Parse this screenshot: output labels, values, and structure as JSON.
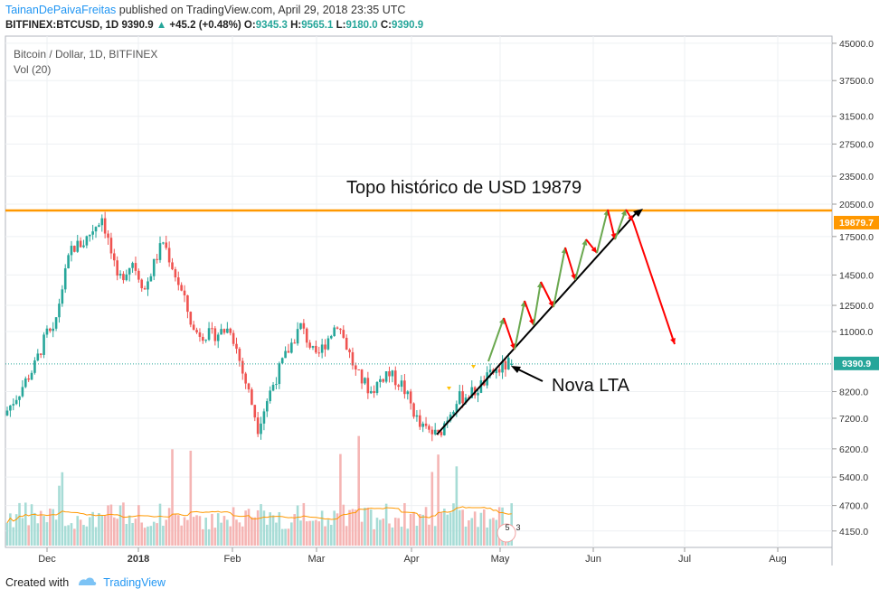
{
  "header": {
    "author": "TainanDePaivaFreitas",
    "published_text": "published on TradingView.com, April 29, 2018 23:35 UTC",
    "symbol": "BITFINEX:BTCUSD, 1D",
    "last": "9390.9",
    "change": "+45.2 (+0.48%)",
    "o_label": "O:",
    "o": "9345.3",
    "h_label": "H:",
    "h": "9565.1",
    "l_label": "L:",
    "l": "9180.0",
    "c_label": "C:",
    "c": "9390.9"
  },
  "legend": {
    "title": "Bitcoin / Dollar, 1D, BITFINEX",
    "volume": "Vol (20)"
  },
  "footer": {
    "created_with": "Created with",
    "brand": "TradingView"
  },
  "chart_data": {
    "type": "candlestick",
    "title": "Bitcoin / Dollar, 1D, BITFINEX",
    "scale": "log",
    "ylim": [
      3900,
      46500
    ],
    "y_ticks": [
      "45000.0",
      "37500.0",
      "31500.0",
      "27500.0",
      "23500.0",
      "20500.0",
      "17500.0",
      "14500.0",
      "12500.0",
      "11000.0",
      "8200.0",
      "7200.0",
      "6200.0",
      "5400.0",
      "4700.0",
      "4150.0"
    ],
    "x_ticks": [
      "Dec",
      "2018",
      "Feb",
      "Mar",
      "Apr",
      "May",
      "Jun",
      "Jul",
      "Aug"
    ],
    "price_labels": {
      "resistance": "19879.7",
      "last": "9390.9"
    },
    "annotations": [
      "Topo histórico de USD 19879",
      "Nova LTA"
    ],
    "volume_badges": [
      "5",
      "3"
    ],
    "colors": {
      "up": "#26a69a",
      "down": "#ef5350",
      "resistance": "#ff9800",
      "trendline": "#000000",
      "projection_up": "#6aa84f",
      "projection_down": "#ff0000",
      "volume_ma": "#ff9800"
    },
    "approx_price_path": [
      [
        "Nov 15",
        7300
      ],
      [
        "Nov 20",
        8200
      ],
      [
        "Nov 25",
        9300
      ],
      [
        "Nov 29",
        10900
      ],
      [
        "Dec 1",
        10800
      ],
      [
        "Dec 7",
        16500
      ],
      [
        "Dec 11",
        17000
      ],
      [
        "Dec 17",
        19300
      ],
      [
        "Dec 22",
        14000
      ],
      [
        "Dec 27",
        15500
      ],
      [
        "Dec 31",
        13500
      ],
      [
        "Jan 6",
        17100
      ],
      [
        "Jan 10",
        14500
      ],
      [
        "Jan 16",
        11000
      ],
      [
        "Jan 22",
        10800
      ],
      [
        "Jan 28",
        11200
      ],
      [
        "Feb 1",
        9000
      ],
      [
        "Feb 6",
        6900
      ],
      [
        "Feb 10",
        8200
      ],
      [
        "Feb 20",
        11300
      ],
      [
        "Feb 25",
        9600
      ],
      [
        "Mar 4",
        11500
      ],
      [
        "Mar 10",
        9000
      ],
      [
        "Mar 15",
        8200
      ],
      [
        "Mar 20",
        9000
      ],
      [
        "Mar 25",
        8500
      ],
      [
        "Mar 31",
        6900
      ],
      [
        "Apr 6",
        6600
      ],
      [
        "Apr 12",
        7900
      ],
      [
        "Apr 18",
        8200
      ],
      [
        "Apr 24",
        9000
      ],
      [
        "Apr 29",
        9390.9
      ]
    ]
  }
}
